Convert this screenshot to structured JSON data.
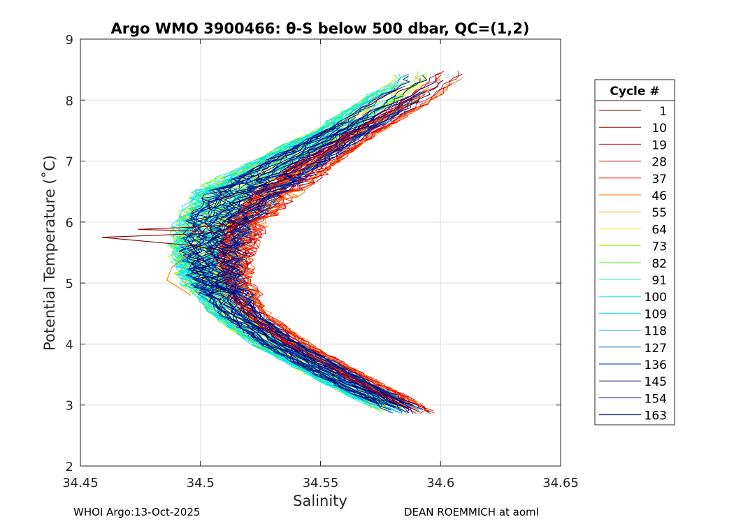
{
  "chart_data": {
    "type": "line",
    "title": "Argo WMO 3900466: θ-S below 500 dbar,  QC=(1,2)",
    "xlabel": "Salinity",
    "ylabel": "Potential Temperature (˚C)",
    "xlim": [
      34.45,
      34.65
    ],
    "ylim": [
      2,
      9
    ],
    "xticks": [
      34.45,
      34.5,
      34.55,
      34.6,
      34.65
    ],
    "xtick_labels": [
      "34.45",
      "34.5",
      "34.55",
      "34.6",
      "34.65"
    ],
    "yticks": [
      2,
      3,
      4,
      5,
      6,
      7,
      8,
      9
    ],
    "ytick_labels": [
      "2",
      "3",
      "4",
      "5",
      "6",
      "7",
      "8",
      "9"
    ],
    "grid": true,
    "legend": {
      "title": "Cycle #",
      "placement": "right-outside",
      "entries": [
        {
          "label": "1",
          "color": "#800000"
        },
        {
          "label": "10",
          "color": "#9c0000"
        },
        {
          "label": "19",
          "color": "#be0000"
        },
        {
          "label": "28",
          "color": "#dd0000"
        },
        {
          "label": "37",
          "color": "#ff0000"
        },
        {
          "label": "46",
          "color": "#ff7000"
        },
        {
          "label": "55",
          "color": "#ffb000"
        },
        {
          "label": "64",
          "color": "#ffee00"
        },
        {
          "label": "73",
          "color": "#aaff00"
        },
        {
          "label": "82",
          "color": "#55ff30"
        },
        {
          "label": "91",
          "color": "#00ff90"
        },
        {
          "label": "100",
          "color": "#00ffd0"
        },
        {
          "label": "109",
          "color": "#00e0ff"
        },
        {
          "label": "118",
          "color": "#00a8e8"
        },
        {
          "label": "127",
          "color": "#0060c0"
        },
        {
          "label": "136",
          "color": "#002aa0"
        },
        {
          "label": "145",
          "color": "#000088"
        },
        {
          "label": "154",
          "color": "#000070"
        },
        {
          "label": "163",
          "color": "#000080"
        }
      ]
    },
    "series_shape": {
      "description": "theta-S profiles forming a C-shape: salinity minimum near 5.5 C",
      "deep_end": {
        "theta": 2.9,
        "salinity_range": [
          34.575,
          34.597
        ]
      },
      "salinity_minimum": {
        "theta": 5.5,
        "salinity_range": [
          34.49,
          34.52
        ]
      },
      "upper_end": {
        "theta_range": [
          7.5,
          8.5
        ],
        "salinity_range": [
          34.57,
          34.613
        ]
      }
    },
    "outliers": [
      {
        "cycle": "1",
        "points": [
          [
            34.522,
            6.02
          ],
          [
            34.506,
            5.82
          ],
          [
            34.459,
            5.75
          ],
          [
            34.495,
            5.62
          ],
          [
            34.506,
            5.55
          ]
        ]
      },
      {
        "cycle": "10",
        "points": [
          [
            34.518,
            6.02
          ],
          [
            34.505,
            5.93
          ],
          [
            34.474,
            5.88
          ],
          [
            34.502,
            5.85
          ]
        ]
      },
      {
        "cycle": "46",
        "points": [
          [
            34.497,
            5.55
          ],
          [
            34.488,
            5.25
          ],
          [
            34.486,
            5.05
          ],
          [
            34.49,
            4.95
          ],
          [
            34.496,
            4.8
          ]
        ]
      }
    ]
  },
  "footer": {
    "left": "WHOI Argo:13-Oct-2025",
    "right": "DEAN ROEMMICH at aoml"
  }
}
